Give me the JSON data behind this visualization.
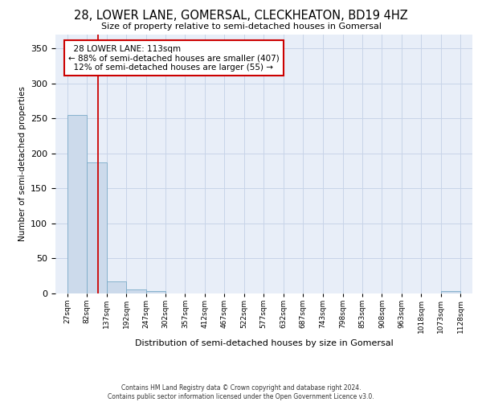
{
  "title": "28, LOWER LANE, GOMERSAL, CLECKHEATON, BD19 4HZ",
  "subtitle": "Size of property relative to semi-detached houses in Gomersal",
  "xlabel": "Distribution of semi-detached houses by size in Gomersal",
  "ylabel": "Number of semi-detached properties",
  "property_label": "28 LOWER LANE: 113sqm",
  "pct_smaller": 88,
  "count_smaller": 407,
  "pct_larger": 12,
  "count_larger": 55,
  "bin_edges": [
    27,
    82,
    137,
    192,
    247,
    302,
    357,
    412,
    467,
    522,
    577,
    632,
    687,
    743,
    798,
    853,
    908,
    963,
    1018,
    1073,
    1128
  ],
  "bar_heights": [
    255,
    187,
    17,
    6,
    3,
    0,
    0,
    0,
    0,
    0,
    0,
    0,
    0,
    0,
    0,
    0,
    0,
    0,
    0,
    3
  ],
  "bar_color": "#ccdaeb",
  "bar_edgecolor": "#7aaac8",
  "vline_color": "#cc0000",
  "vline_x": 113,
  "annotation_box_edgecolor": "#cc0000",
  "ylim": [
    0,
    370
  ],
  "yticks": [
    0,
    50,
    100,
    150,
    200,
    250,
    300,
    350
  ],
  "grid_color": "#c8d4e8",
  "background_color": "#e8eef8",
  "footer_line1": "Contains HM Land Registry data © Crown copyright and database right 2024.",
  "footer_line2": "Contains public sector information licensed under the Open Government Licence v3.0."
}
